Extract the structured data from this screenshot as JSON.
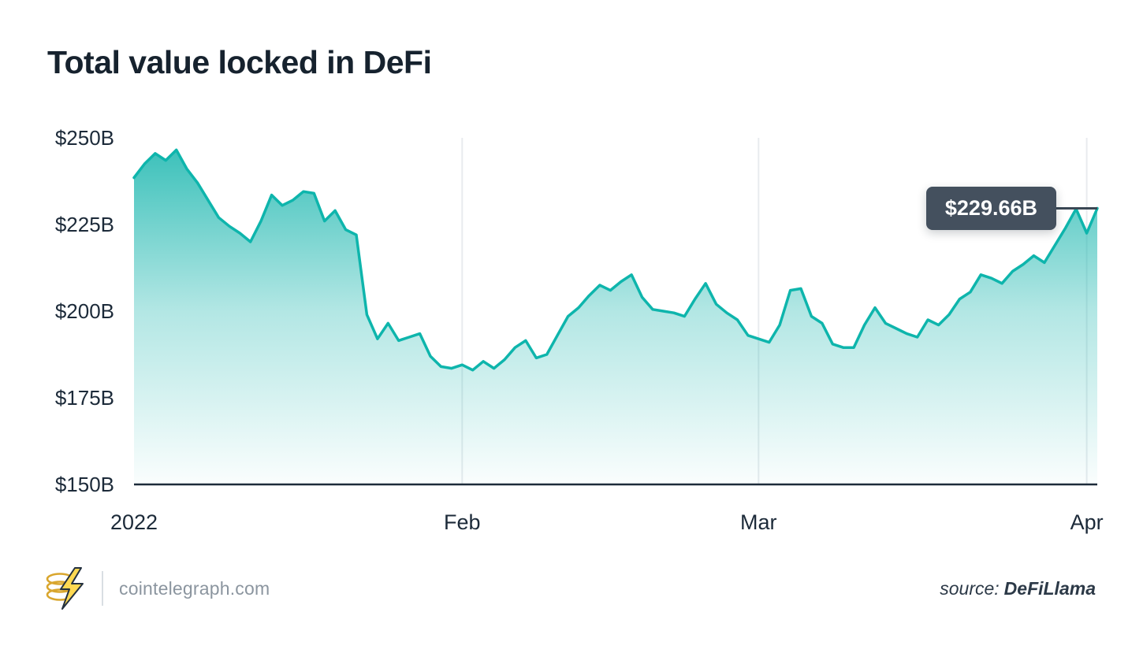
{
  "title": "Total value locked in DeFi",
  "chart_data": {
    "type": "area",
    "title": "Total value locked in DeFi",
    "unit": "USD billions",
    "start_date": "2022-01-01",
    "frequency": "daily",
    "ylim": [
      150,
      250
    ],
    "grid": "vertical-only",
    "values": [
      238.5,
      242.5,
      245.5,
      243.5,
      246.5,
      241.0,
      237.0,
      232.0,
      227.0,
      224.5,
      222.5,
      220.0,
      226.0,
      233.5,
      230.5,
      232.0,
      234.5,
      234.0,
      226.0,
      229.0,
      223.5,
      222.0,
      199.0,
      192.0,
      196.5,
      191.5,
      192.5,
      193.5,
      187.0,
      184.0,
      183.5,
      184.5,
      183.0,
      185.5,
      183.5,
      186.0,
      189.5,
      191.5,
      186.5,
      187.5,
      193.0,
      198.5,
      201.0,
      204.5,
      207.5,
      206.0,
      208.5,
      210.5,
      204.0,
      200.5,
      200.0,
      199.5,
      198.5,
      203.5,
      208.0,
      202.0,
      199.5,
      197.5,
      193.0,
      192.0,
      191.0,
      196.0,
      206.0,
      206.5,
      198.5,
      196.5,
      190.5,
      189.5,
      189.5,
      196.0,
      201.0,
      196.5,
      195.0,
      193.5,
      192.5,
      197.5,
      196.0,
      199.0,
      203.5,
      205.5,
      210.5,
      209.5,
      208.0,
      211.5,
      213.5,
      216.0,
      214.0,
      219.0,
      224.0,
      229.5,
      222.5,
      229.66
    ],
    "y_ticks": [
      {
        "v": 150,
        "label": "$150B"
      },
      {
        "v": 175,
        "label": "$175B"
      },
      {
        "v": 200,
        "label": "$200B"
      },
      {
        "v": 225,
        "label": "$225B"
      },
      {
        "v": 250,
        "label": "$250B"
      }
    ],
    "x_ticks": [
      {
        "i": 0,
        "label": "2022"
      },
      {
        "i": 31,
        "label": "Feb"
      },
      {
        "i": 59,
        "label": "Mar"
      },
      {
        "i": 90,
        "label": "Apr"
      }
    ],
    "tooltip": {
      "label": "$229.66B",
      "value": 229.66
    }
  },
  "colors": {
    "line": "#0eb5ac",
    "fill_top": "#10b3ab",
    "axis": "#1d2b3a",
    "grid": "#e8ebee",
    "tick_text": "#1c2a39",
    "tooltip_bg": "#44505e",
    "ruler": "#3a4754",
    "logo_gold": "#d9a62e",
    "bolt_fill": "#ffd952"
  },
  "footer": {
    "site": "cointelegraph.com",
    "source_label": "source:",
    "source_name": "DeFiLlama"
  }
}
